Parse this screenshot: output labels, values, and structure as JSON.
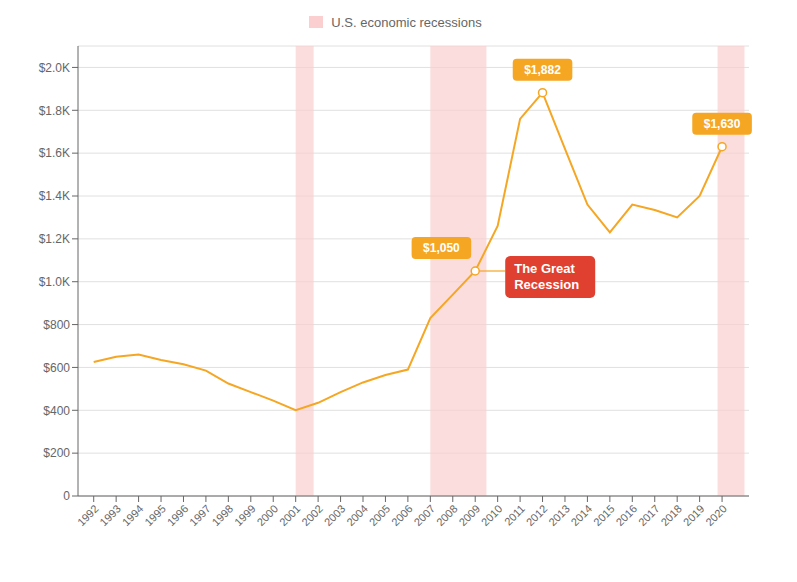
{
  "chart_data": {
    "type": "line",
    "x": [
      1992,
      1993,
      1994,
      1995,
      1996,
      1997,
      1998,
      1999,
      2000,
      2001,
      2002,
      2003,
      2004,
      2005,
      2006,
      2007,
      2008,
      2009,
      2010,
      2011,
      2012,
      2013,
      2014,
      2015,
      2016,
      2017,
      2018,
      2019,
      2020
    ],
    "values": [
      625,
      650,
      660,
      635,
      615,
      585,
      525,
      485,
      445,
      400,
      435,
      485,
      530,
      565,
      590,
      830,
      940,
      1050,
      1260,
      1760,
      1882,
      1620,
      1360,
      1230,
      1360,
      1335,
      1300,
      1400,
      1630
    ],
    "color": "#F5A623",
    "xlim": [
      1991.3,
      2021.2
    ],
    "xticks": [
      1992,
      1993,
      1994,
      1995,
      1996,
      1997,
      1998,
      1999,
      2000,
      2001,
      2002,
      2003,
      2004,
      2005,
      2006,
      2007,
      2008,
      2009,
      2010,
      2011,
      2012,
      2013,
      2014,
      2015,
      2016,
      2017,
      2018,
      2019,
      2020
    ],
    "ylim": [
      0,
      2100
    ],
    "yticks": [
      0,
      {
        "value": 200,
        "label": "$200"
      },
      {
        "value": 400,
        "label": "$400"
      },
      {
        "value": 600,
        "label": "$600"
      },
      {
        "value": 800,
        "label": "$800"
      },
      {
        "value": 1000,
        "label": "$1.0K"
      },
      {
        "value": 1200,
        "label": "$1.2K"
      },
      {
        "value": 1400,
        "label": "$1.4K"
      },
      {
        "value": 1600,
        "label": "$1.6K"
      },
      {
        "value": 1800,
        "label": "$1.8K"
      },
      {
        "value": 2000,
        "label": "$2.0K"
      }
    ],
    "grid": true,
    "legend": "top",
    "bands": {
      "name": "U.S. economic recessions",
      "color": "#FBCFCF",
      "ranges": [
        {
          "start": 2001.0,
          "end": 2001.8
        },
        {
          "start": 2007.0,
          "end": 2009.5
        },
        {
          "start": 2019.8,
          "end": 2021.0
        }
      ]
    },
    "annotations": [
      {
        "x": 2009,
        "y": 1050,
        "label": "$1,050",
        "color": "#F5A623"
      },
      {
        "x": 2012,
        "y": 1882,
        "label": "$1,882",
        "color": "#F5A623"
      },
      {
        "x": 2020,
        "y": 1630,
        "label": "$1,630",
        "color": "#F5A623"
      }
    ],
    "callout": {
      "x": 2009,
      "y": 1050,
      "label": "The Great\nRecession",
      "color": "#E04030"
    }
  }
}
